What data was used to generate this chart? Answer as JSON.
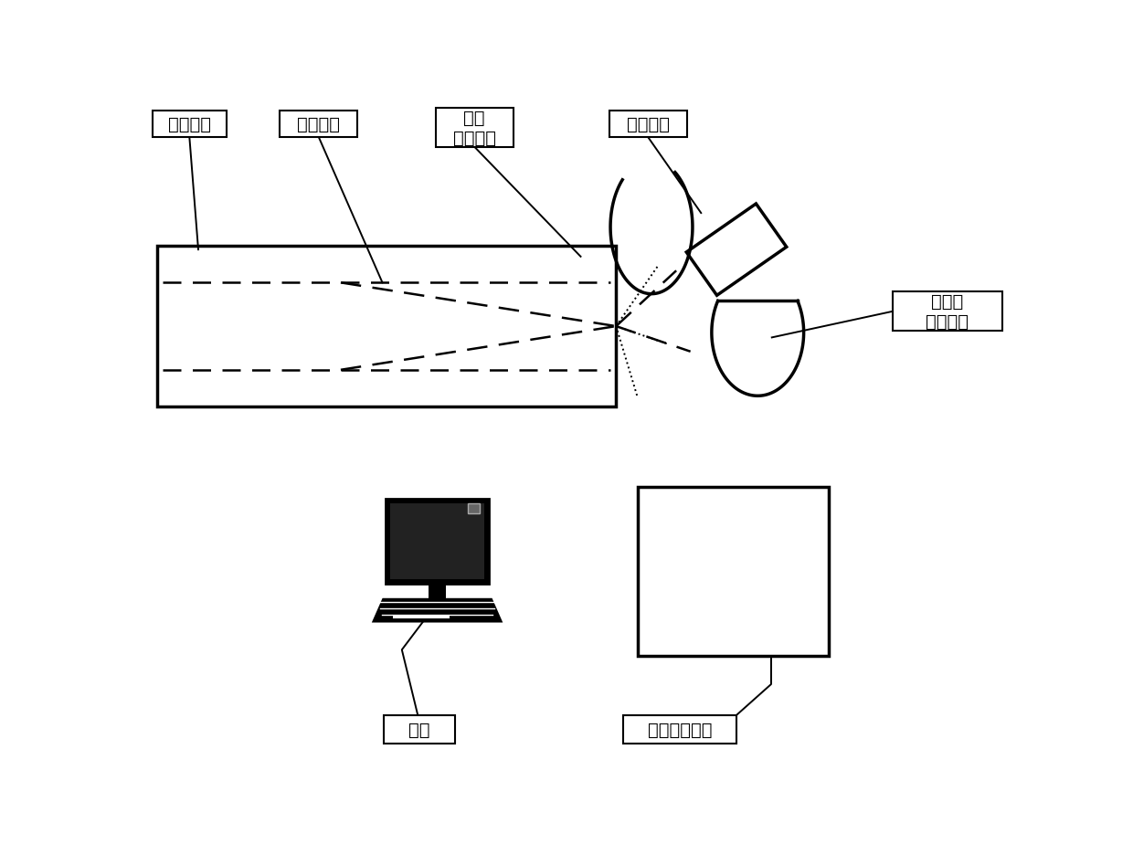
{
  "bg_color": "#ffffff",
  "labels": {
    "label1": "被检工件",
    "label2": "待检部位",
    "label3": "紫外\n补充灯光",
    "label4": "相机组件",
    "label5": "可见光\n补充灯光",
    "label6": "终端",
    "label7": "成像电控系统"
  },
  "font_size": 14
}
